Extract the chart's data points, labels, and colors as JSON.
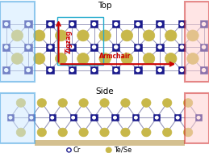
{
  "title_top": "Top",
  "title_side": "Side",
  "label_armchair": "Armchair",
  "label_zigzag": "Zigzag",
  "label_cr": "Cr",
  "label_tese": "Te/Se",
  "cr_color": "#1a1a8c",
  "tese_color": "#c8b84a",
  "bond_color": "#9999bb",
  "bg_color": "#f5eed8",
  "blue_box_color": "#3399dd",
  "red_box_color": "#cc2222",
  "arrow_color": "#cc0000",
  "fig_bg": "#ffffff",
  "cyan_box_color": "#22aacc",
  "figsize": [
    2.59,
    1.89
  ],
  "dpi": 100
}
